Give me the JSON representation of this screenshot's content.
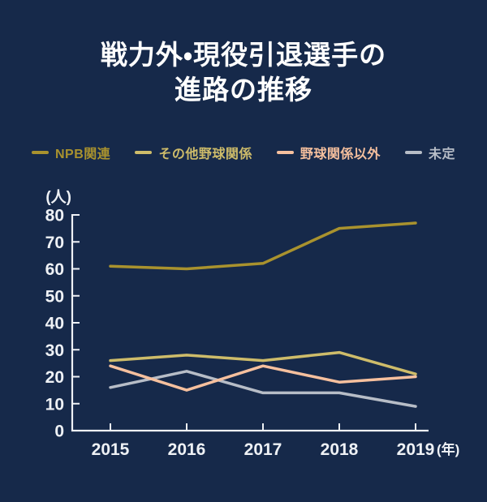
{
  "page": {
    "title_line1": "戦力外・現役引退選手の",
    "title_line2": "進路の推移"
  },
  "chart_data": {
    "type": "line",
    "title": "戦力外・現役引退選手の進路の推移",
    "x_categories": [
      "2015",
      "2016",
      "2017",
      "2018",
      "2019"
    ],
    "x_axis_suffix": "(年)",
    "y_axis_unit": "(人)",
    "ylim": [
      0,
      80
    ],
    "yticks": [
      0,
      10,
      20,
      30,
      40,
      50,
      60,
      70,
      80
    ],
    "grid": false,
    "legend_position": "top",
    "series": [
      {
        "name": "NPB関連",
        "color": "#a9922e",
        "values": [
          61,
          60,
          62,
          75,
          77
        ]
      },
      {
        "name": "その他野球関係",
        "color": "#cebc6a",
        "values": [
          26,
          28,
          26,
          29,
          21
        ]
      },
      {
        "name": "野球関係以外",
        "color": "#f6c09e",
        "values": [
          24,
          15,
          24,
          18,
          20
        ]
      },
      {
        "name": "未定",
        "color": "#b7bdc7",
        "values": [
          16,
          22,
          14,
          14,
          9
        ]
      }
    ],
    "colors": {
      "background": "#16294a",
      "axis": "#eef1f5",
      "text": "#ffffff"
    }
  }
}
